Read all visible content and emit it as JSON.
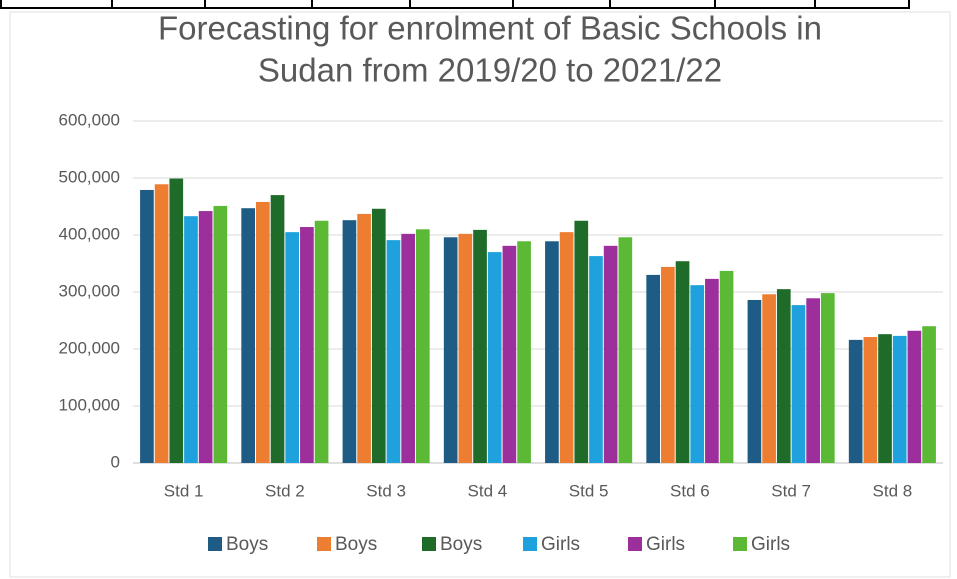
{
  "chart_data": {
    "type": "bar",
    "title": [
      "Forecasting for enrolment of Basic Schools in",
      "Sudan from 2019/20 to 2021/22"
    ],
    "categories": [
      "Std 1",
      "Std 2",
      "Std 3",
      "Std 4",
      "Std 5",
      "Std 6",
      "Std 7",
      "Std 8"
    ],
    "series": [
      {
        "name": "Boys",
        "color": "#1f5c85",
        "values": [
          479000,
          447000,
          426000,
          396000,
          389000,
          330000,
          286000,
          216000
        ]
      },
      {
        "name": "Boys",
        "color": "#ed7d31",
        "values": [
          489000,
          458000,
          437000,
          402000,
          405000,
          344000,
          296000,
          221000
        ]
      },
      {
        "name": "Boys",
        "color": "#1e6b2a",
        "values": [
          499000,
          470000,
          446000,
          409000,
          425000,
          354000,
          305000,
          226000
        ]
      },
      {
        "name": "Girls",
        "color": "#1ea1dc",
        "values": [
          433000,
          405000,
          391000,
          370000,
          363000,
          312000,
          277000,
          223000
        ]
      },
      {
        "name": "Girls",
        "color": "#9c2f9c",
        "values": [
          442000,
          414000,
          402000,
          381000,
          381000,
          323000,
          289000,
          232000
        ]
      },
      {
        "name": "Girls",
        "color": "#5bb936",
        "values": [
          451000,
          425000,
          410000,
          389000,
          396000,
          337000,
          298000,
          240000
        ]
      }
    ],
    "ylim": [
      0,
      600000
    ],
    "yticks": [
      0,
      {
        "value": 100000,
        "label": "100,000"
      },
      {
        "value": 200000,
        "label": "200,000"
      },
      {
        "value": 300000,
        "label": "300,000"
      },
      {
        "value": 400000,
        "label": "400,000"
      },
      {
        "value": 500000,
        "label": "500,000"
      },
      {
        "value": 600000,
        "label": "600,000"
      }
    ],
    "grid": true
  }
}
